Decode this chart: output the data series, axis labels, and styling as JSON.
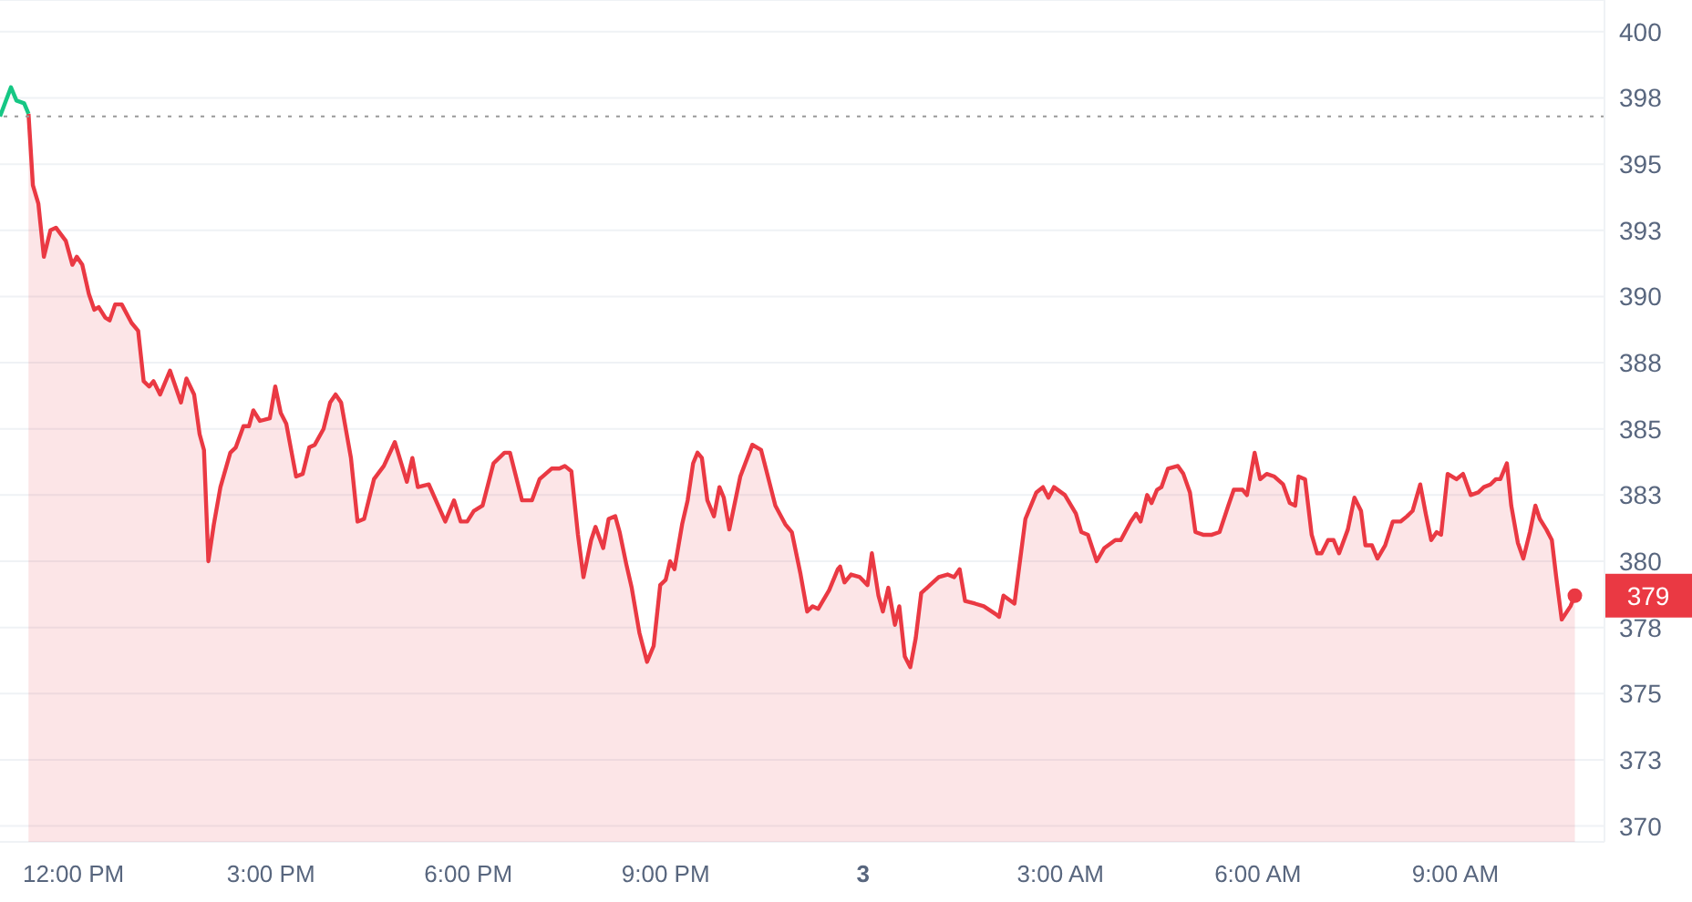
{
  "chart_data": {
    "type": "area",
    "series": [
      {
        "type": "line",
        "color": "#16c784",
        "x": [
          "--01-02T10:53",
          "--01-02T11:03",
          "--01-02T11:08",
          "--01-02T11:15",
          "--01-02T11:19"
        ],
        "values": [
          396.8,
          397.9,
          397.4,
          397.3,
          396.9
        ]
      },
      {
        "color": "#ea3943",
        "x": [
          "--01-02T11:19",
          "--01-02T11:23",
          "--01-02T11:28",
          "--01-02T11:33",
          "--01-02T11:39",
          "--01-02T11:44",
          "--01-02T11:53",
          "--01-02T11:59",
          "--01-02T12:03",
          "--01-02T12:08",
          "--01-02T12:14",
          "--01-02T12:19",
          "--01-02T12:23",
          "--01-02T12:29",
          "--01-02T12:33",
          "--01-02T12:38",
          "--01-02T12:44",
          "--01-02T12:53",
          "--01-02T12:59",
          "--01-02T13:04",
          "--01-02T13:09",
          "--01-02T13:13",
          "--01-02T13:19",
          "--01-02T13:28",
          "--01-02T13:38",
          "--01-02T13:43",
          "--01-02T13:50",
          "--01-02T13:55",
          "--01-02T13:59",
          "--01-02T14:03",
          "--01-02T14:08",
          "--01-02T14:14",
          "--01-02T14:23",
          "--01-02T14:28",
          "--01-02T14:35",
          "--01-02T14:40",
          "--01-02T14:44",
          "--01-02T14:50",
          "--01-02T14:59",
          "--01-02T15:04",
          "--01-02T15:09",
          "--01-02T15:14",
          "--01-02T15:23",
          "--01-02T15:29",
          "--01-02T15:35",
          "--01-02T15:40",
          "--01-02T15:48",
          "--01-02T15:54",
          "--01-02T15:59",
          "--01-02T16:04",
          "--01-02T16:13",
          "--01-02T16:19",
          "--01-02T16:25",
          "--01-02T16:34",
          "--01-02T16:43",
          "--01-02T16:53",
          "--01-02T17:04",
          "--01-02T17:09",
          "--01-02T17:14",
          "--01-02T17:24",
          "--01-02T17:39",
          "--01-02T17:47",
          "--01-02T17:53",
          "--01-02T17:59",
          "--01-02T18:05",
          "--01-02T18:13",
          "--01-02T18:23",
          "--01-02T18:33",
          "--01-02T18:38",
          "--01-02T18:49",
          "--01-02T18:58",
          "--01-02T19:05",
          "--01-02T19:16",
          "--01-02T19:23",
          "--01-02T19:28",
          "--01-02T19:34",
          "--01-02T19:40",
          "--01-02T19:45",
          "--01-02T19:52",
          "--01-02T19:56",
          "--01-02T20:03",
          "--01-02T20:08",
          "--01-02T20:14",
          "--01-02T20:18",
          "--01-02T20:24",
          "--01-02T20:29",
          "--01-02T20:36",
          "--01-02T20:43",
          "--01-02T20:49",
          "--01-02T20:55",
          "--01-02T21:00",
          "--01-02T21:04",
          "--01-02T21:08",
          "--01-02T21:15",
          "--01-02T21:20",
          "--01-02T21:25",
          "--01-02T21:29",
          "--01-02T21:33",
          "--01-02T21:38",
          "--01-02T21:44",
          "--01-02T21:49",
          "--01-02T21:53",
          "--01-02T21:58",
          "--01-02T22:08",
          "--01-02T22:19",
          "--01-02T22:27",
          "--01-02T22:40",
          "--01-02T22:49",
          "--01-02T22:55",
          "--01-02T23:03",
          "--01-02T23:09",
          "--01-02T23:14",
          "--01-02T23:19",
          "--01-02T23:29",
          "--01-02T23:37",
          "--01-02T23:39",
          "--01-02T23:43",
          "--01-02T23:49",
          "--01-02T23:57",
          "--01-03T00:04",
          "--01-03T00:08",
          "--01-03T00:14",
          "--01-03T00:18",
          "--01-03T00:23",
          "--01-03T00:29",
          "--01-03T00:33",
          "--01-03T00:38",
          "--01-03T00:43",
          "--01-03T00:48",
          "--01-03T00:53",
          "--01-03T01:01",
          "--01-03T01:09",
          "--01-03T01:17",
          "--01-03T01:23",
          "--01-03T01:28",
          "--01-03T01:33",
          "--01-03T01:42",
          "--01-03T01:50",
          "--01-03T02:01",
          "--01-03T02:04",
          "--01-03T02:08",
          "--01-03T02:18",
          "--01-03T02:28",
          "--01-03T02:38",
          "--01-03T02:44",
          "--01-03T02:49",
          "--01-03T02:54",
          "--01-03T03:04",
          "--01-03T03:14",
          "--01-03T03:19",
          "--01-03T03:25",
          "--01-03T03:33",
          "--01-03T03:40",
          "--01-03T03:50",
          "--01-03T03:55",
          "--01-03T04:04",
          "--01-03T04:09",
          "--01-03T04:13",
          "--01-03T04:19",
          "--01-03T04:23",
          "--01-03T04:28",
          "--01-03T04:32",
          "--01-03T04:38",
          "--01-03T04:47",
          "--01-03T04:52",
          "--01-03T04:58",
          "--01-03T05:03",
          "--01-03T05:10",
          "--01-03T05:18",
          "--01-03T05:25",
          "--01-03T05:33",
          "--01-03T05:38",
          "--01-03T05:46",
          "--01-03T05:50",
          "--01-03T05:57",
          "--01-03T06:02",
          "--01-03T06:08",
          "--01-03T06:15",
          "--01-03T06:23",
          "--01-03T06:29",
          "--01-03T06:34",
          "--01-03T06:37",
          "--01-03T06:43",
          "--01-03T06:49",
          "--01-03T06:54",
          "--01-03T06:58",
          "--01-03T07:04",
          "--01-03T07:09",
          "--01-03T07:14",
          "--01-03T07:22",
          "--01-03T07:28",
          "--01-03T07:34",
          "--01-03T07:38",
          "--01-03T07:44",
          "--01-03T07:49",
          "--01-03T07:56",
          "--01-03T08:03",
          "--01-03T08:10",
          "--01-03T08:16",
          "--01-03T08:21",
          "--01-03T08:28",
          "--01-03T08:33",
          "--01-03T08:38",
          "--01-03T08:43",
          "--01-03T08:47",
          "--01-03T08:53",
          "--01-03T09:01",
          "--01-03T09:07",
          "--01-03T09:14",
          "--01-03T09:21",
          "--01-03T09:26",
          "--01-03T09:32",
          "--01-03T09:37",
          "--01-03T09:41",
          "--01-03T09:47",
          "--01-03T09:51",
          "--01-03T09:57",
          "--01-03T10:02",
          "--01-03T10:08",
          "--01-03T10:13",
          "--01-03T10:17",
          "--01-03T10:23",
          "--01-03T10:28",
          "--01-03T10:32",
          "--01-03T10:37",
          "--01-03T10:45",
          "--01-03T10:49"
        ],
        "values": [
          396.9,
          394.2,
          393.5,
          391.5,
          392.5,
          392.6,
          392.1,
          391.2,
          391.5,
          391.2,
          390.1,
          389.5,
          389.6,
          389.2,
          389.1,
          389.7,
          389.7,
          389.0,
          388.7,
          386.8,
          386.6,
          386.8,
          386.3,
          387.2,
          386.0,
          386.9,
          386.3,
          384.8,
          384.2,
          380.0,
          381.4,
          382.8,
          384.1,
          384.3,
          385.1,
          385.1,
          385.7,
          385.3,
          385.4,
          386.6,
          385.6,
          385.2,
          383.2,
          383.3,
          384.3,
          384.4,
          385.0,
          386.0,
          386.3,
          386.0,
          383.9,
          381.5,
          381.6,
          383.1,
          383.6,
          384.5,
          383.0,
          383.9,
          382.8,
          382.9,
          381.5,
          382.3,
          381.5,
          381.5,
          381.9,
          382.1,
          383.7,
          384.1,
          384.1,
          382.3,
          382.3,
          383.1,
          383.5,
          383.5,
          383.6,
          383.4,
          381.0,
          379.4,
          380.8,
          381.3,
          380.5,
          381.6,
          381.7,
          381.1,
          379.9,
          379.0,
          377.3,
          376.2,
          376.8,
          379.1,
          379.3,
          380.0,
          379.7,
          381.4,
          382.3,
          383.7,
          384.1,
          383.9,
          382.3,
          381.7,
          382.8,
          382.4,
          381.2,
          383.2,
          384.4,
          384.2,
          382.1,
          381.4,
          381.1,
          379.5,
          378.1,
          378.3,
          378.2,
          378.9,
          379.7,
          379.8,
          379.2,
          379.5,
          379.4,
          379.1,
          380.3,
          378.7,
          378.1,
          379.0,
          377.6,
          378.3,
          376.4,
          376.0,
          377.1,
          378.8,
          379.1,
          379.4,
          379.5,
          379.4,
          379.7,
          378.5,
          378.4,
          378.3,
          378.0,
          377.9,
          378.7,
          378.4,
          381.6,
          382.6,
          382.8,
          382.4,
          382.8,
          382.5,
          381.8,
          381.1,
          381.0,
          380.0,
          380.5,
          380.8,
          380.8,
          381.5,
          381.8,
          381.5,
          382.5,
          382.2,
          382.7,
          382.8,
          383.5,
          383.6,
          383.3,
          382.6,
          381.1,
          381.0,
          381.0,
          381.1,
          382.1,
          382.7,
          382.7,
          382.5,
          384.1,
          383.1,
          383.3,
          383.2,
          382.9,
          382.2,
          382.1,
          383.2,
          383.1,
          381.0,
          380.3,
          380.3,
          380.8,
          380.8,
          380.3,
          381.2,
          382.4,
          381.9,
          380.6,
          380.6,
          380.1,
          380.6,
          381.5,
          381.5,
          381.7,
          381.9,
          382.9,
          381.8,
          380.8,
          381.1,
          381.0,
          383.3,
          383.1,
          383.3,
          382.5,
          382.6,
          382.8,
          382.9,
          383.1,
          383.1,
          383.7,
          382.1,
          380.7,
          380.1,
          381.1,
          382.1,
          381.6,
          381.2,
          380.8,
          379.4,
          377.8,
          378.3,
          378.7
        ]
      }
    ],
    "xlim": [
      "--01-02T10:53",
      "--01-03T11:16"
    ],
    "xticks": [
      {
        "value": "--01-02T12:00",
        "label": "12:00 PM"
      },
      {
        "value": "--01-02T15:00",
        "label": "3:00 PM"
      },
      {
        "value": "--01-02T18:00",
        "label": "6:00 PM"
      },
      {
        "value": "--01-02T21:00",
        "label": "9:00 PM"
      },
      {
        "value": "--01-03T00:00",
        "label": "3"
      },
      {
        "value": "--01-03T03:00",
        "label": "3:00 AM"
      },
      {
        "value": "--01-03T06:00",
        "label": "6:00 AM"
      },
      {
        "value": "--01-03T09:00",
        "label": "9:00 AM"
      }
    ],
    "ylim": [
      369.4,
      401.2
    ],
    "yticks": [
      400,
      {
        "value": 397.5,
        "label": "398"
      },
      395,
      {
        "value": 392.5,
        "label": "393"
      },
      390,
      {
        "value": 387.5,
        "label": "388"
      },
      385,
      {
        "value": 382.5,
        "label": "383"
      },
      380,
      {
        "value": 377.5,
        "label": "378"
      },
      375,
      {
        "value": 372.5,
        "label": "373"
      },
      370
    ],
    "grid": "y",
    "legend": false,
    "marker": "none",
    "line_style": "solid",
    "ref_lines": [
      {
        "axis": "y",
        "value": 396.8,
        "color": "#999999",
        "line_style": "dotted"
      }
    ],
    "annotations": [
      {
        "text": "379",
        "x": "--01-03T10:49",
        "y": 378.7
      }
    ]
  }
}
